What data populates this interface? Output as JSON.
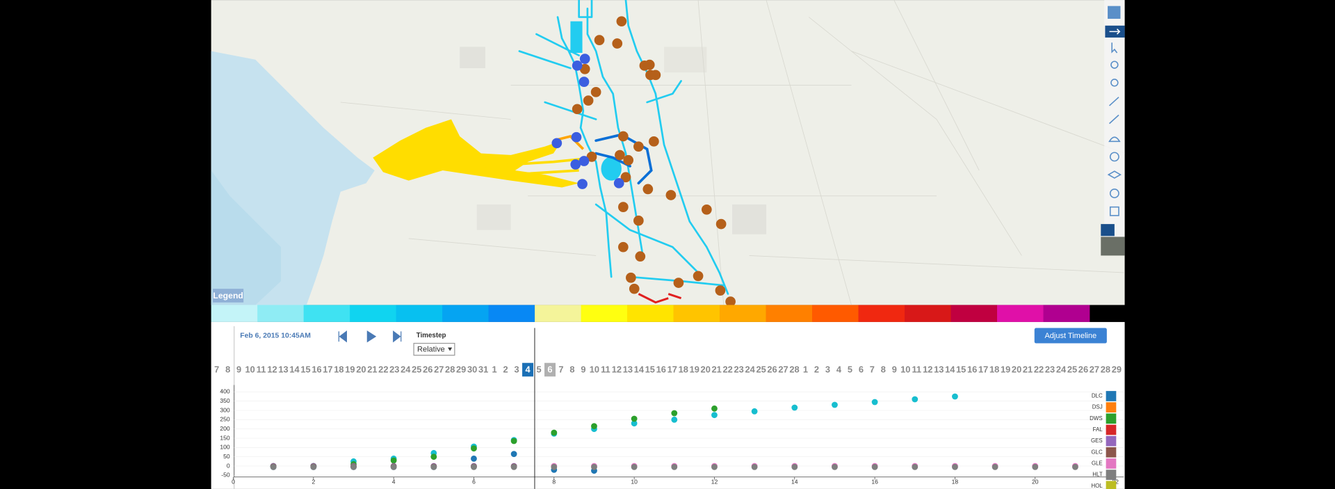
{
  "map": {
    "legend_button": "Legend"
  },
  "controls": {
    "date": "Feb 6, 2015 10:45AM",
    "timestep_label": "Timestep",
    "timestep_value": "Relative",
    "adjust_button": "Adjust Timeline"
  },
  "timeline": {
    "months": [
      {
        "days": [
          7,
          8,
          9,
          10,
          11,
          12,
          13,
          14,
          15,
          16,
          17,
          18,
          19,
          20,
          21,
          22,
          23,
          24,
          25,
          26,
          27,
          28,
          29,
          30,
          31
        ]
      },
      {
        "days": [
          1,
          2,
          3,
          4,
          5,
          6,
          7,
          8,
          9,
          10,
          11,
          12,
          13,
          14,
          15,
          16,
          17,
          18,
          19,
          20,
          21,
          22,
          23,
          24,
          25,
          26,
          27,
          28
        ],
        "selected": 4,
        "marked": 6
      },
      {
        "days": [
          1,
          2,
          3,
          4,
          5,
          6,
          7,
          8,
          9,
          10,
          11,
          12,
          13,
          14,
          15,
          16,
          17,
          18,
          19,
          20,
          21,
          22,
          23,
          24,
          25,
          26,
          27,
          28,
          29
        ]
      }
    ]
  },
  "chart_data": {
    "type": "scatter",
    "x": [
      1,
      2,
      3,
      4,
      5,
      6,
      7,
      8,
      9,
      10,
      11,
      12,
      13,
      14,
      15,
      16,
      17,
      18,
      19,
      20,
      21
    ],
    "xlim": [
      0,
      22
    ],
    "xticks": [
      0,
      2,
      4,
      6,
      8,
      10,
      12,
      14,
      16,
      18,
      20,
      22
    ],
    "ylim": [
      -50,
      400
    ],
    "yticks": [
      -50,
      0,
      50,
      100,
      150,
      200,
      250,
      300,
      350,
      400
    ],
    "series": [
      {
        "color": "#17becf",
        "values": [
          -2,
          0,
          25,
          40,
          70,
          105,
          140,
          175,
          200,
          230,
          250,
          275,
          295,
          315,
          330,
          345,
          360,
          375,
          null,
          null,
          null
        ]
      },
      {
        "name": "DLC",
        "color": "#1f77b4",
        "values": [
          -5,
          -5,
          -5,
          -5,
          -5,
          40,
          65,
          -20,
          -25,
          null,
          null,
          null,
          null,
          null,
          null,
          null,
          null,
          null,
          null,
          null,
          null
        ]
      },
      {
        "name": "DSJ",
        "color": "#ff7f0e",
        "values": [
          null,
          null,
          null,
          null,
          null,
          null,
          null,
          null,
          null,
          null,
          null,
          null,
          null,
          null,
          null,
          null,
          null,
          null,
          null,
          null,
          null
        ]
      },
      {
        "name": "DWS",
        "color": "#2ca02c",
        "values": [
          0,
          0,
          10,
          30,
          50,
          95,
          135,
          180,
          215,
          255,
          285,
          310,
          null,
          null,
          null,
          null,
          null,
          null,
          null,
          null,
          null
        ]
      },
      {
        "name": "FAL",
        "color": "#d62728",
        "values": [
          null,
          null,
          null,
          null,
          null,
          null,
          null,
          null,
          null,
          null,
          null,
          null,
          null,
          null,
          null,
          null,
          null,
          null,
          null,
          null,
          null
        ]
      },
      {
        "name": "GES",
        "color": "#9467bd",
        "values": [
          0,
          0,
          0,
          0,
          0,
          0,
          0,
          null,
          null,
          null,
          null,
          null,
          null,
          null,
          null,
          null,
          null,
          null,
          null,
          null,
          null
        ]
      },
      {
        "name": "GLC",
        "color": "#8c564b",
        "values": [
          -3,
          -3,
          -3,
          -3,
          -3,
          -3,
          -3,
          null,
          null,
          null,
          null,
          null,
          null,
          null,
          null,
          null,
          null,
          null,
          null,
          null,
          null
        ]
      },
      {
        "name": "GLE",
        "color": "#e377c2",
        "values": [
          null,
          null,
          null,
          null,
          null,
          null,
          null,
          0,
          0,
          0,
          0,
          0,
          0,
          0,
          0,
          0,
          0,
          0,
          0,
          0,
          0
        ]
      },
      {
        "name": "HLT",
        "color": "#7f7f7f",
        "values": [
          -5,
          -5,
          -5,
          -5,
          -5,
          -5,
          -5,
          -5,
          -5,
          -5,
          -5,
          -5,
          -5,
          -5,
          -5,
          -5,
          -5,
          -5,
          -5,
          -5,
          -5
        ]
      },
      {
        "name": "HOL",
        "color": "#bcbd22",
        "values": [
          null,
          null,
          null,
          null,
          null,
          null,
          null,
          null,
          null,
          null,
          null,
          null,
          null,
          null,
          null,
          null,
          null,
          null,
          null,
          null,
          null
        ]
      }
    ]
  }
}
